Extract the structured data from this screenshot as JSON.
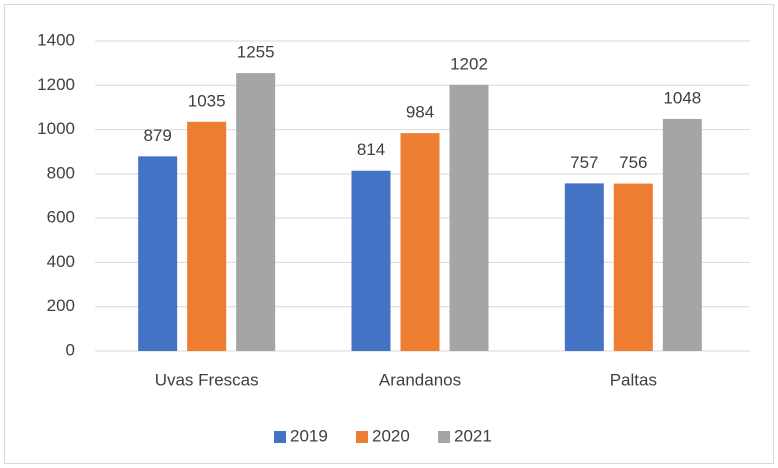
{
  "chart_data": {
    "type": "bar",
    "categories": [
      "Uvas Frescas",
      "Arandanos",
      "Paltas"
    ],
    "series": [
      {
        "name": "2019",
        "color": "#4472c4",
        "values": [
          879,
          814,
          757
        ]
      },
      {
        "name": "2020",
        "color": "#ed7d31",
        "values": [
          1035,
          984,
          756
        ]
      },
      {
        "name": "2021",
        "color": "#a5a5a5",
        "values": [
          1255,
          1202,
          1048
        ]
      }
    ],
    "ylim": [
      0,
      1400
    ],
    "yticks": [
      0,
      200,
      400,
      600,
      800,
      1000,
      1200,
      1400
    ],
    "grid": true,
    "legend": "bottom"
  }
}
